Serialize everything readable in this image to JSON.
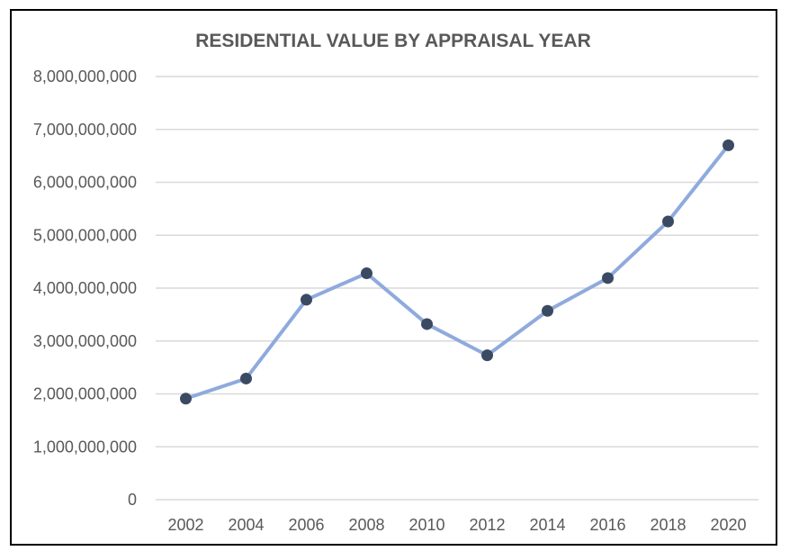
{
  "chart_data": {
    "type": "line",
    "title": "RESIDENTIAL VALUE BY APPRAISAL YEAR",
    "xlabel": "",
    "ylabel": "",
    "categories": [
      "2002",
      "2004",
      "2006",
      "2008",
      "2010",
      "2012",
      "2014",
      "2016",
      "2018",
      "2020"
    ],
    "values": [
      1910000000,
      2290000000,
      3780000000,
      4280000000,
      3320000000,
      2730000000,
      3570000000,
      4190000000,
      5260000000,
      6700000000
    ],
    "ylim": [
      0,
      8000000000
    ],
    "yticks": [
      "0",
      "1,000,000,000",
      "2,000,000,000",
      "3,000,000,000",
      "4,000,000,000",
      "5,000,000,000",
      "6,000,000,000",
      "7,000,000,000",
      "8,000,000,000"
    ],
    "grid": true,
    "legend": "none",
    "colors": {
      "line": "#8FAADC",
      "marker": "#3B4A63",
      "grid": "#D9D9D9",
      "text": "#595959"
    }
  }
}
